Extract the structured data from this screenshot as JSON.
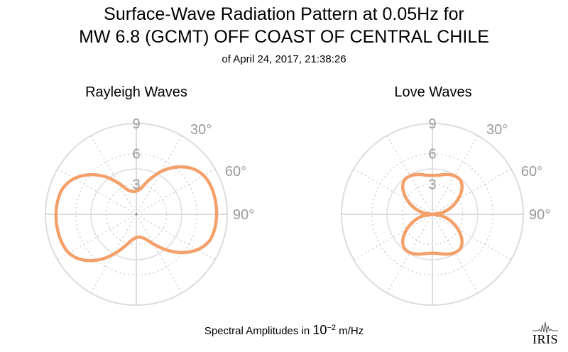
{
  "title_line1": "Surface-Wave Radiation Pattern at 0.05Hz for",
  "title_line2": "MW 6.8 (GCMT) OFF COAST OF CENTRAL CHILE",
  "subtitle": "of April 24, 2017, 21:38:26",
  "footer": {
    "label": "Spectral Amplitudes in",
    "base": "10",
    "exponent": "−2",
    "unit": "m/Hz"
  },
  "logo_text": "IRIS",
  "colors": {
    "pattern": "#f4a06a",
    "grid": "#dcdcdc",
    "grid_dotted": "#d0d0d0",
    "tick_label": "#999999"
  },
  "chart_data": [
    {
      "type": "polar-line",
      "title": "Rayleigh Waves",
      "radial_ticks": [
        3,
        6,
        9
      ],
      "radial_max": 9,
      "angle_tick_labels": [
        "30°",
        "60°",
        "90°"
      ],
      "angles_deg": [
        0,
        10,
        20,
        30,
        40,
        50,
        60,
        70,
        80,
        90,
        100,
        110,
        120,
        130,
        140,
        150,
        160,
        170,
        180,
        190,
        200,
        210,
        220,
        230,
        240,
        250,
        260,
        270,
        280,
        290,
        300,
        310,
        320,
        330,
        340,
        350,
        360
      ],
      "amplitudes": [
        2.3,
        2.6,
        3.6,
        4.9,
        6.1,
        7.1,
        7.7,
        7.9,
        7.95,
        7.95,
        7.9,
        7.7,
        7.0,
        5.9,
        4.6,
        3.4,
        2.6,
        2.3,
        2.3,
        2.6,
        3.4,
        4.6,
        5.9,
        7.0,
        7.7,
        7.9,
        7.95,
        7.95,
        7.9,
        7.7,
        7.1,
        6.1,
        4.9,
        3.6,
        2.6,
        2.3,
        2.3
      ]
    },
    {
      "type": "polar-line",
      "title": "Love Waves",
      "radial_ticks": [
        3,
        6,
        9
      ],
      "radial_max": 9,
      "angle_tick_labels": [
        "30°",
        "60°",
        "90°"
      ],
      "angles_deg": [
        0,
        10,
        20,
        30,
        40,
        50,
        60,
        70,
        80,
        90,
        100,
        110,
        120,
        130,
        140,
        150,
        160,
        170,
        180,
        190,
        200,
        210,
        220,
        230,
        240,
        250,
        260,
        270,
        280,
        290,
        300,
        310,
        320,
        330,
        340,
        350,
        360
      ],
      "amplitudes": [
        3.85,
        3.95,
        4.2,
        4.4,
        4.35,
        3.8,
        2.9,
        1.95,
        1.0,
        0.1,
        1.0,
        1.95,
        2.9,
        3.8,
        4.35,
        4.4,
        4.2,
        3.95,
        3.85,
        3.95,
        4.2,
        4.4,
        4.35,
        3.8,
        2.9,
        1.95,
        1.0,
        0.1,
        1.0,
        1.95,
        2.9,
        3.8,
        4.35,
        4.4,
        4.2,
        3.95,
        3.85
      ]
    }
  ]
}
